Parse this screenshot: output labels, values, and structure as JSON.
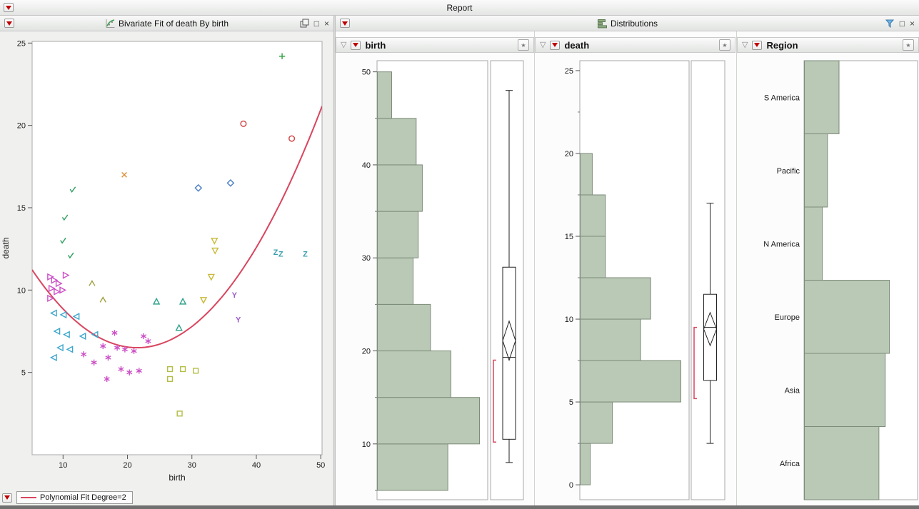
{
  "window": {
    "title": "Report"
  },
  "icons": {
    "maximize": "□",
    "close": "×",
    "disclosure": "▽",
    "star": "★"
  },
  "distributions": {
    "title": "Distributions"
  },
  "colors": {
    "bar_fill": "#bac8b6",
    "bar_stroke": "#7d8c7a",
    "fit_line": "#d9455f",
    "bracket": "#d9455f",
    "red_triangle": "#c00000"
  },
  "chart_data": [
    {
      "type": "scatter",
      "title": "Bivariate Fit of death By birth",
      "xlabel": "birth",
      "ylabel": "death",
      "xlim": [
        5.2,
        50.2
      ],
      "ylim": [
        0,
        25.1
      ],
      "x_ticks": [
        10,
        20,
        30,
        40,
        50
      ],
      "y_ticks": [
        5,
        10,
        15,
        20,
        25
      ],
      "fit_curve": {
        "label": "Polynomial Fit Degree=2",
        "type": "quadratic",
        "a": 0.0178,
        "vertex_x": 21.5,
        "vertex_y": 6.5,
        "color": "#d9455f"
      },
      "series": [
        {
          "name": "red-circle",
          "marker": "circle",
          "color": "#cf4040",
          "points": [
            [
              38,
              20.1
            ],
            [
              45.5,
              19.2
            ]
          ]
        },
        {
          "name": "green-plus",
          "marker": "plus",
          "color": "#35a044",
          "points": [
            [
              44,
              24.2
            ]
          ]
        },
        {
          "name": "orange-x",
          "marker": "x",
          "color": "#df8e33",
          "points": [
            [
              19.5,
              17.0
            ]
          ]
        },
        {
          "name": "blue-diamond",
          "marker": "diamond",
          "color": "#4b7fc9",
          "points": [
            [
              31,
              16.2
            ],
            [
              36,
              16.5
            ]
          ]
        },
        {
          "name": "green-check",
          "marker": "check",
          "color": "#2fa05f",
          "points": [
            [
              11.5,
              16.1
            ],
            [
              10.3,
              14.4
            ],
            [
              10,
              13.0
            ],
            [
              11.2,
              12.1
            ]
          ]
        },
        {
          "name": "magenta-triangle-right",
          "marker": "triangle-right",
          "color": "#cc4fc6",
          "points": [
            [
              8,
              10.8
            ],
            [
              8.6,
              10.6
            ],
            [
              9.3,
              10.4
            ],
            [
              8.2,
              10.1
            ],
            [
              9,
              9.9
            ],
            [
              9.9,
              10.0
            ],
            [
              8,
              9.5
            ],
            [
              10.4,
              10.9
            ]
          ]
        },
        {
          "name": "cyan-triangle-left",
          "marker": "triangle-left",
          "color": "#3da6cc",
          "points": [
            [
              8.6,
              8.6
            ],
            [
              10.1,
              8.5
            ],
            [
              12.1,
              8.4
            ],
            [
              9.1,
              7.5
            ],
            [
              10.6,
              7.3
            ],
            [
              13.1,
              7.2
            ],
            [
              15,
              7.3
            ],
            [
              9.6,
              6.5
            ],
            [
              11.1,
              6.4
            ],
            [
              8.6,
              5.9
            ]
          ]
        },
        {
          "name": "olive-caret",
          "marker": "caret",
          "color": "#9f9f40",
          "points": [
            [
              14.5,
              10.4
            ],
            [
              16.2,
              9.4
            ]
          ]
        },
        {
          "name": "magenta-asterisk",
          "marker": "asterisk",
          "color": "#cc4fc6",
          "points": [
            [
              13.2,
              6.1
            ],
            [
              14.8,
              5.6
            ],
            [
              16.2,
              6.6
            ],
            [
              16.8,
              4.6
            ],
            [
              17,
              5.9
            ],
            [
              18,
              7.4
            ],
            [
              18.4,
              6.5
            ],
            [
              19,
              5.2
            ],
            [
              19.6,
              6.4
            ],
            [
              20.3,
              5.0
            ],
            [
              21,
              6.3
            ],
            [
              21.8,
              5.1
            ],
            [
              22.5,
              7.2
            ],
            [
              23.2,
              6.9
            ]
          ]
        },
        {
          "name": "teal-triangle-up",
          "marker": "triangle-up",
          "color": "#2fa38c",
          "points": [
            [
              24.5,
              9.3
            ],
            [
              28.6,
              9.3
            ],
            [
              28,
              7.7
            ]
          ]
        },
        {
          "name": "yellow-triangle-down",
          "marker": "triangle-down",
          "color": "#c9ba3a",
          "points": [
            [
              33.5,
              13.0
            ],
            [
              33.6,
              12.4
            ],
            [
              33,
              10.8
            ],
            [
              31.8,
              9.4
            ]
          ]
        },
        {
          "name": "purple-Y",
          "marker": "letter-Y",
          "color": "#a05ccc",
          "points": [
            [
              36.6,
              9.7
            ],
            [
              37.2,
              8.2
            ]
          ]
        },
        {
          "name": "teal-Z",
          "marker": "letter-Z",
          "color": "#3b9fae",
          "points": [
            [
              43,
              12.3
            ],
            [
              43.8,
              12.2
            ],
            [
              47.6,
              12.2
            ]
          ]
        },
        {
          "name": "yellowgreen-square",
          "marker": "square",
          "color": "#b4bd45",
          "points": [
            [
              26.6,
              5.2
            ],
            [
              28.6,
              5.2
            ],
            [
              30.6,
              5.1
            ],
            [
              26.6,
              4.6
            ],
            [
              28.1,
              2.5
            ]
          ]
        }
      ]
    },
    {
      "type": "bar",
      "subtype": "histogram",
      "orientation": "horizontal",
      "title": "birth",
      "axis_range": [
        4.0,
        51.2
      ],
      "axis_ticks": [
        10,
        20,
        30,
        40,
        50
      ],
      "bins": [
        {
          "range": [
            5,
            10
          ],
          "rel": 0.69
        },
        {
          "range": [
            10,
            15
          ],
          "rel": 1.0
        },
        {
          "range": [
            15,
            20
          ],
          "rel": 0.72
        },
        {
          "range": [
            20,
            25
          ],
          "rel": 0.52
        },
        {
          "range": [
            25,
            30
          ],
          "rel": 0.35
        },
        {
          "range": [
            30,
            35
          ],
          "rel": 0.4
        },
        {
          "range": [
            35,
            40
          ],
          "rel": 0.44
        },
        {
          "range": [
            40,
            45
          ],
          "rel": 0.38
        },
        {
          "range": [
            45,
            50
          ],
          "rel": 0.14
        }
      ],
      "boxplot": {
        "low": 8.0,
        "q1": 10.5,
        "median": 19.3,
        "q3": 29.0,
        "high": 48.0,
        "mean": 21.1,
        "diamond_half": 2.1,
        "shortest_half_bracket": [
          10.2,
          19.0
        ]
      }
    },
    {
      "type": "bar",
      "subtype": "histogram",
      "orientation": "horizontal",
      "title": "death",
      "axis_range": [
        -0.9,
        25.6
      ],
      "axis_ticks": [
        0,
        5,
        10,
        15,
        20,
        25
      ],
      "bins": [
        {
          "range": [
            0,
            2.5
          ],
          "rel": 0.1
        },
        {
          "range": [
            2.5,
            5
          ],
          "rel": 0.32
        },
        {
          "range": [
            5,
            7.5
          ],
          "rel": 1.0
        },
        {
          "range": [
            7.5,
            10
          ],
          "rel": 0.6
        },
        {
          "range": [
            10,
            12.5
          ],
          "rel": 0.7
        },
        {
          "range": [
            12.5,
            15
          ],
          "rel": 0.25
        },
        {
          "range": [
            15,
            17.5
          ],
          "rel": 0.25
        },
        {
          "range": [
            17.5,
            20
          ],
          "rel": 0.12
        }
      ],
      "boxplot": {
        "low": 2.5,
        "q1": 6.3,
        "median": 9.5,
        "q3": 11.5,
        "high": 17.0,
        "mean": 9.4,
        "diamond_half": 1.0,
        "shortest_half_bracket": [
          5.2,
          9.5
        ]
      }
    },
    {
      "type": "bar",
      "subtype": "category",
      "orientation": "horizontal",
      "title": "Region",
      "categories": [
        "S America",
        "Pacific",
        "N America",
        "Europe",
        "Asia",
        "Africa"
      ],
      "values": [
        0.33,
        0.22,
        0.17,
        0.81,
        0.77,
        0.71
      ],
      "values_unit": "relative-width"
    }
  ]
}
